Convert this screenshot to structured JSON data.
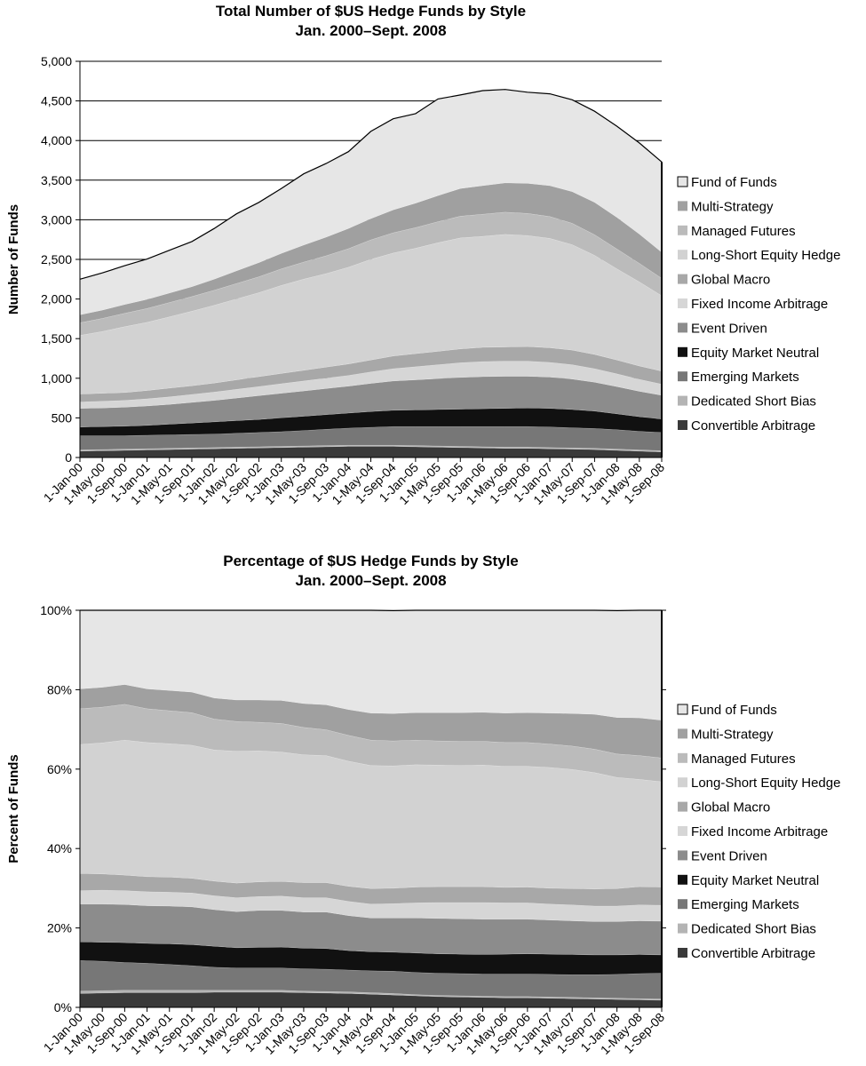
{
  "chart_data": [
    {
      "type": "area",
      "stacked": true,
      "title": "Total Number of $US Hedge Funds by Style",
      "subtitle": "Jan. 2000–Sept. 2008",
      "xlabel": "",
      "ylabel": "Number of Funds",
      "ylim": [
        0,
        5000
      ],
      "y_ticks": [
        "0",
        "500",
        "1,000",
        "1,500",
        "2,000",
        "2,500",
        "3,000",
        "3,500",
        "4,000",
        "4,500",
        "5,000"
      ],
      "y_tick_values": [
        0,
        500,
        1000,
        1500,
        2000,
        2500,
        3000,
        3500,
        4000,
        4500,
        5000
      ],
      "grid": "horizontal",
      "legend_position": "right",
      "x": [
        "1-Jan-00",
        "1-May-00",
        "1-Sep-00",
        "1-Jan-01",
        "1-May-01",
        "1-Sep-01",
        "1-Jan-02",
        "1-May-02",
        "1-Sep-02",
        "1-Jan-03",
        "1-May-03",
        "1-Sep-03",
        "1-Jan-04",
        "1-May-04",
        "1-Sep-04",
        "1-Jan-05",
        "1-May-05",
        "1-Sep-05",
        "1-Jan-06",
        "1-May-06",
        "1-Sep-06",
        "1-Jan-07",
        "1-May-07",
        "1-Sep-07",
        "1-Jan-08",
        "1-May-08",
        "1-Sep-08"
      ],
      "series": [
        {
          "name": "Convertible Arbitrage",
          "color": "#3a3a3a",
          "values": [
            80,
            85,
            90,
            95,
            100,
            105,
            110,
            115,
            120,
            125,
            130,
            135,
            140,
            140,
            140,
            135,
            130,
            125,
            120,
            115,
            115,
            110,
            105,
            100,
            90,
            80,
            70
          ]
        },
        {
          "name": "Dedicated Short Bias",
          "color": "#b4b4b4",
          "values": [
            15,
            15,
            15,
            15,
            15,
            15,
            15,
            15,
            15,
            15,
            15,
            15,
            15,
            15,
            15,
            15,
            15,
            15,
            15,
            15,
            15,
            15,
            15,
            15,
            15,
            15,
            15
          ]
        },
        {
          "name": "Emerging Markets",
          "color": "#777777",
          "values": [
            180,
            175,
            170,
            170,
            170,
            170,
            170,
            175,
            180,
            185,
            195,
            205,
            215,
            225,
            235,
            240,
            245,
            250,
            255,
            260,
            260,
            260,
            255,
            250,
            245,
            235,
            230
          ]
        },
        {
          "name": "Equity Market Neutral",
          "color": "#111111",
          "values": [
            110,
            115,
            120,
            125,
            135,
            145,
            155,
            160,
            165,
            175,
            180,
            185,
            190,
            200,
            205,
            210,
            215,
            220,
            225,
            230,
            235,
            235,
            230,
            220,
            200,
            185,
            170
          ]
        },
        {
          "name": "Event Driven",
          "color": "#8c8c8c",
          "values": [
            235,
            235,
            240,
            245,
            250,
            260,
            270,
            285,
            300,
            310,
            320,
            330,
            340,
            355,
            370,
            380,
            390,
            400,
            405,
            405,
            400,
            395,
            385,
            365,
            345,
            320,
            300
          ]
        },
        {
          "name": "Fixed Income Arbitrage",
          "color": "#d6d6d6",
          "values": [
            80,
            85,
            85,
            90,
            95,
            100,
            105,
            110,
            115,
            120,
            125,
            130,
            135,
            145,
            155,
            165,
            175,
            185,
            190,
            190,
            190,
            185,
            180,
            170,
            160,
            150,
            140
          ]
        },
        {
          "name": "Global Macro",
          "color": "#a8a8a8",
          "values": [
            100,
            100,
            100,
            105,
            110,
            110,
            115,
            120,
            125,
            130,
            135,
            140,
            145,
            150,
            160,
            165,
            170,
            175,
            180,
            180,
            185,
            185,
            185,
            180,
            175,
            170,
            165
          ]
        },
        {
          "name": "Long-Short Equity Hedge",
          "color": "#d2d2d2",
          "values": [
            740,
            780,
            830,
            860,
            900,
            940,
            980,
            1020,
            1060,
            1110,
            1150,
            1180,
            1220,
            1270,
            1300,
            1330,
            1370,
            1400,
            1400,
            1420,
            1400,
            1380,
            1330,
            1250,
            1150,
            1060,
            950
          ]
        },
        {
          "name": "Managed Futures",
          "color": "#bbbbbb",
          "values": [
            160,
            165,
            170,
            175,
            180,
            185,
            190,
            195,
            200,
            210,
            215,
            225,
            235,
            245,
            255,
            260,
            265,
            275,
            280,
            280,
            280,
            275,
            270,
            260,
            250,
            235,
            220
          ]
        },
        {
          "name": "Multi-Strategy",
          "color": "#a0a0a0",
          "values": [
            100,
            105,
            110,
            115,
            120,
            125,
            140,
            160,
            180,
            195,
            215,
            235,
            255,
            270,
            290,
            310,
            330,
            350,
            360,
            370,
            380,
            390,
            400,
            410,
            400,
            370,
            330
          ]
        },
        {
          "name": "Fund of Funds",
          "color": "#e6e6e6",
          "values": [
            450,
            470,
            490,
            510,
            540,
            570,
            640,
            720,
            760,
            820,
            900,
            930,
            970,
            1100,
            1150,
            1130,
            1220,
            1180,
            1200,
            1180,
            1150,
            1160,
            1160,
            1150,
            1150,
            1150,
            1140
          ]
        }
      ]
    },
    {
      "type": "area",
      "stacked": true,
      "percent": true,
      "title": "Percentage of $US Hedge Funds by Style",
      "subtitle": "Jan. 2000–Sept. 2008",
      "xlabel": "",
      "ylabel": "Percent of Funds",
      "ylim": [
        0,
        100
      ],
      "y_ticks": [
        "0%",
        "20%",
        "40%",
        "60%",
        "80%",
        "100%"
      ],
      "y_tick_values": [
        0,
        20,
        40,
        60,
        80,
        100
      ],
      "grid": "none",
      "legend_position": "right",
      "x": [
        "1-Jan-00",
        "1-May-00",
        "1-Sep-00",
        "1-Jan-01",
        "1-May-01",
        "1-Sep-01",
        "1-Jan-02",
        "1-May-02",
        "1-Sep-02",
        "1-Jan-03",
        "1-May-03",
        "1-Sep-03",
        "1-Jan-04",
        "1-May-04",
        "1-Sep-04",
        "1-Jan-05",
        "1-May-05",
        "1-Sep-05",
        "1-Jan-06",
        "1-May-06",
        "1-Sep-06",
        "1-Jan-07",
        "1-May-07",
        "1-Sep-07",
        "1-Jan-08",
        "1-May-08",
        "1-Sep-08"
      ],
      "series": [
        {
          "name": "Convertible Arbitrage",
          "color": "#3a3a3a",
          "values": [
            3.5,
            3.6,
            3.7,
            3.7,
            3.7,
            3.7,
            3.8,
            3.8,
            3.8,
            3.8,
            3.7,
            3.6,
            3.5,
            3.3,
            3.1,
            2.9,
            2.7,
            2.6,
            2.5,
            2.4,
            2.4,
            2.3,
            2.2,
            2.1,
            2.0,
            1.9,
            1.8
          ]
        },
        {
          "name": "Dedicated Short Bias",
          "color": "#b4b4b4",
          "values": [
            0.6,
            0.6,
            0.6,
            0.6,
            0.6,
            0.6,
            0.5,
            0.5,
            0.5,
            0.5,
            0.4,
            0.4,
            0.4,
            0.4,
            0.4,
            0.3,
            0.3,
            0.3,
            0.3,
            0.3,
            0.3,
            0.3,
            0.3,
            0.3,
            0.3,
            0.3,
            0.3
          ]
        },
        {
          "name": "Emerging Markets",
          "color": "#777777",
          "values": [
            7.7,
            7.4,
            7.0,
            6.8,
            6.5,
            6.2,
            5.8,
            5.6,
            5.6,
            5.6,
            5.6,
            5.6,
            5.5,
            5.5,
            5.6,
            5.6,
            5.6,
            5.6,
            5.6,
            5.7,
            5.7,
            5.7,
            5.7,
            5.8,
            6.0,
            6.3,
            6.5
          ]
        },
        {
          "name": "Equity Market Neutral",
          "color": "#111111",
          "values": [
            4.7,
            4.8,
            5.0,
            5.0,
            5.2,
            5.3,
            5.3,
            5.1,
            5.2,
            5.3,
            5.2,
            5.2,
            4.9,
            4.8,
            4.8,
            4.9,
            4.9,
            4.9,
            4.9,
            5.0,
            5.1,
            5.1,
            5.1,
            5.0,
            4.9,
            4.8,
            4.6
          ]
        },
        {
          "name": "Event Driven",
          "color": "#8c8c8c",
          "values": [
            9.5,
            9.6,
            9.6,
            9.5,
            9.5,
            9.5,
            9.2,
            9.1,
            9.3,
            9.2,
            9.1,
            9.2,
            8.8,
            8.5,
            8.6,
            8.8,
            8.9,
            8.9,
            8.9,
            8.8,
            8.7,
            8.6,
            8.5,
            8.4,
            8.4,
            8.5,
            8.5
          ]
        },
        {
          "name": "Fixed Income Arbitrage",
          "color": "#d6d6d6",
          "values": [
            3.4,
            3.5,
            3.5,
            3.5,
            3.5,
            3.5,
            3.5,
            3.5,
            3.5,
            3.6,
            3.6,
            3.6,
            3.6,
            3.5,
            3.6,
            3.8,
            4.0,
            4.1,
            4.2,
            4.1,
            4.1,
            4.0,
            4.0,
            3.9,
            3.9,
            4.0,
            4.0
          ]
        },
        {
          "name": "Global Macro",
          "color": "#a8a8a8",
          "values": [
            4.3,
            4.1,
            3.9,
            3.8,
            3.8,
            3.7,
            3.7,
            3.7,
            3.7,
            3.7,
            3.8,
            3.8,
            3.8,
            3.9,
            3.9,
            4.0,
            4.0,
            4.0,
            4.0,
            3.9,
            4.0,
            4.0,
            4.1,
            4.3,
            4.4,
            4.6,
            4.6
          ]
        },
        {
          "name": "Long-Short Equity Hedge",
          "color": "#d2d2d2",
          "values": [
            32.5,
            33.0,
            34.0,
            33.8,
            33.6,
            33.5,
            33.0,
            33.2,
            33.0,
            32.6,
            32.2,
            32.0,
            31.5,
            31.0,
            30.8,
            30.8,
            30.6,
            30.5,
            30.6,
            30.5,
            30.4,
            30.4,
            30.0,
            29.3,
            28.0,
            27.0,
            26.5
          ]
        },
        {
          "name": "Managed Futures",
          "color": "#bbbbbb",
          "values": [
            9.0,
            9.0,
            9.0,
            8.5,
            8.3,
            8.2,
            7.8,
            7.5,
            7.2,
            7.2,
            6.9,
            6.5,
            6.5,
            6.4,
            6.3,
            6.2,
            6.1,
            6.1,
            6.0,
            6.0,
            6.0,
            5.9,
            5.9,
            5.9,
            5.9,
            6.0,
            6.0
          ]
        },
        {
          "name": "Multi-Strategy",
          "color": "#a0a0a0",
          "values": [
            5.0,
            5.0,
            5.0,
            5.0,
            5.1,
            5.2,
            5.3,
            5.4,
            5.6,
            5.8,
            6.0,
            6.3,
            6.5,
            6.8,
            6.9,
            6.9,
            7.1,
            7.2,
            7.3,
            7.4,
            7.5,
            7.8,
            8.2,
            8.8,
            9.2,
            9.5,
            9.5
          ]
        },
        {
          "name": "Fund of Funds",
          "color": "#e6e6e6",
          "values": [
            19.8,
            19.4,
            18.7,
            19.8,
            20.2,
            20.6,
            22.1,
            22.6,
            22.6,
            22.7,
            23.5,
            23.8,
            25.0,
            25.9,
            25.9,
            25.8,
            25.8,
            25.8,
            25.7,
            25.9,
            25.8,
            25.9,
            26.0,
            26.2,
            26.9,
            27.1,
            27.7
          ]
        }
      ]
    }
  ]
}
